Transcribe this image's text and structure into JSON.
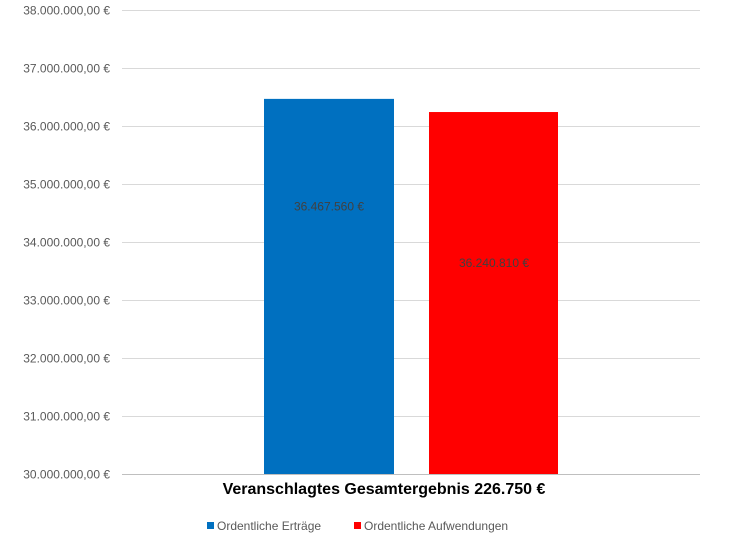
{
  "chart_data": {
    "type": "bar",
    "categories": [
      "Veranschlagtes Gesamtergebnis 226.750 €"
    ],
    "xlabel": "Veranschlagtes Gesamtergebnis 226.750 €",
    "ylabel": "",
    "ylim": [
      30000000,
      38000000
    ],
    "y_ticks": [
      30000000,
      31000000,
      32000000,
      33000000,
      34000000,
      35000000,
      36000000,
      37000000,
      38000000
    ],
    "y_tick_labels": [
      "30.000.000,00 €",
      "31.000.000,00 €",
      "32.000.000,00 €",
      "33.000.000,00 €",
      "34.000.000,00 €",
      "35.000.000,00 €",
      "36.000.000,00 €",
      "37.000.000,00 €",
      "38.000.000,00 €"
    ],
    "grid": true,
    "legend_position": "bottom",
    "series": [
      {
        "name": "Ordentliche Erträge",
        "values": [
          36467560
        ],
        "value_label": "36.467.560 €",
        "color": "#0070C0"
      },
      {
        "name": "Ordentliche Aufwendungen",
        "values": [
          36240810
        ],
        "value_label": "36.240.810 €",
        "color": "#FF0000"
      }
    ]
  }
}
